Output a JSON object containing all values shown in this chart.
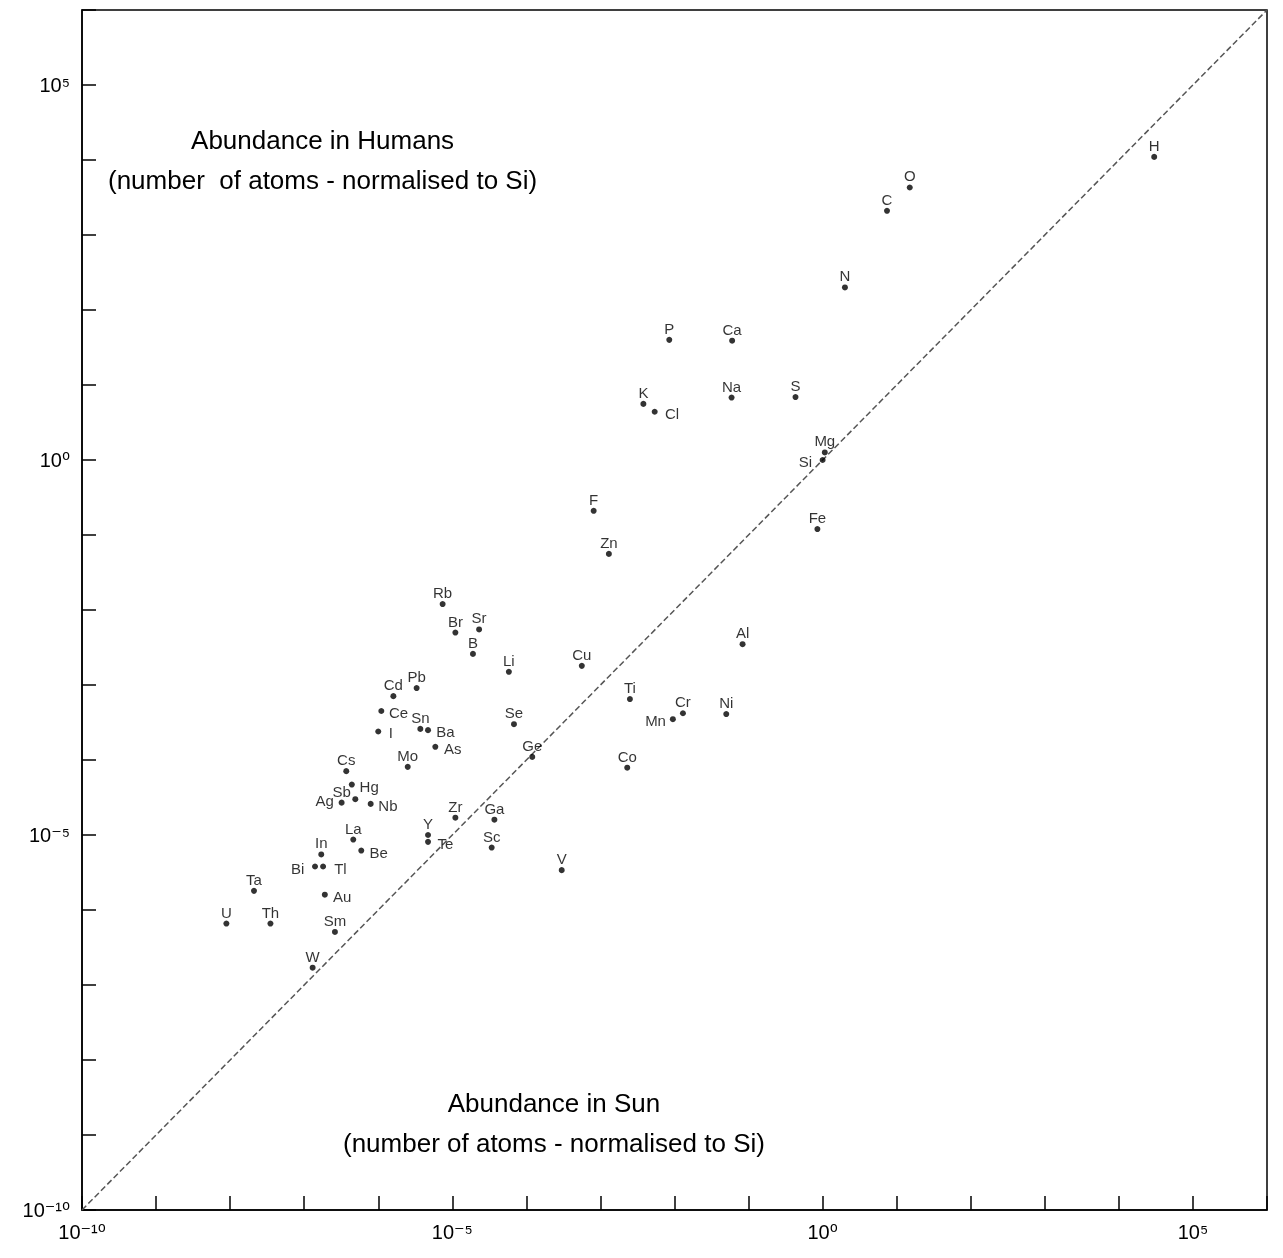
{
  "chart_data": {
    "type": "scatter",
    "xlabel": "Abundance in Sun\n(number of atoms - normalised to Si)",
    "ylabel": "Abundance in Humans\n(number  of atoms - normalised to Si)",
    "log": "xy",
    "grid": false,
    "marker": "circle",
    "xlim": [
      1e-10,
      1000000.0
    ],
    "ylim": [
      1e-10,
      1000000.0
    ],
    "xticks": [
      {
        "value": 1e-10,
        "label": "10⁻¹⁰"
      },
      {
        "value": 1e-09,
        "label": null
      },
      {
        "value": 1e-08,
        "label": null
      },
      {
        "value": 1e-07,
        "label": null
      },
      {
        "value": 1e-06,
        "label": null
      },
      {
        "value": 1e-05,
        "label": "10⁻⁵"
      },
      {
        "value": 0.0001,
        "label": null
      },
      {
        "value": 0.001,
        "label": null
      },
      {
        "value": 0.01,
        "label": null
      },
      {
        "value": 0.1,
        "label": null
      },
      {
        "value": 1,
        "label": "10⁰"
      },
      {
        "value": 10,
        "label": null
      },
      {
        "value": 100,
        "label": null
      },
      {
        "value": 1000,
        "label": null
      },
      {
        "value": 10000.0,
        "label": null
      },
      {
        "value": 100000.0,
        "label": "10⁵"
      },
      {
        "value": 1000000.0,
        "label": null
      }
    ],
    "yticks": [
      {
        "value": 1e-10,
        "label": "10⁻¹⁰"
      },
      {
        "value": 1e-09,
        "label": null
      },
      {
        "value": 1e-08,
        "label": null
      },
      {
        "value": 1e-07,
        "label": null
      },
      {
        "value": 1e-06,
        "label": null
      },
      {
        "value": 1e-05,
        "label": "10⁻⁵"
      },
      {
        "value": 0.0001,
        "label": null
      },
      {
        "value": 0.001,
        "label": null
      },
      {
        "value": 0.01,
        "label": null
      },
      {
        "value": 0.1,
        "label": null
      },
      {
        "value": 1,
        "label": "10⁰"
      },
      {
        "value": 10,
        "label": null
      },
      {
        "value": 100,
        "label": null
      },
      {
        "value": 1000,
        "label": null
      },
      {
        "value": 10000.0,
        "label": null
      },
      {
        "value": 100000.0,
        "label": "10⁵"
      },
      {
        "value": 1000000.0,
        "label": null
      }
    ],
    "series": [
      {
        "color": "#000000",
        "x": [
          30000.0,
          15,
          7.4,
          2.0,
          0.0085,
          0.06,
          0.0038,
          0.0054,
          0.059,
          0.43,
          1.07,
          1,
          0.00081,
          0.85,
          0.0013,
          7.4e-06,
          1.1e-05,
          2.3e-05,
          1.9e-05,
          5.8e-05,
          0.00056,
          0.083,
          0.0025,
          0.013,
          0.05,
          0.0095,
          3.3e-06,
          1.6e-06,
          1.1e-06,
          3.7e-06,
          4.7e-06,
          1e-06,
          6.8e-05,
          0.00012,
          0.0023,
          2.5e-06,
          5.9e-06,
          3.7e-07,
          4.4e-07,
          4.9e-07,
          3.2e-07,
          7.9e-07,
          1.1e-05,
          3.7e-05,
          4.7e-06,
          4.6e-07,
          3.4e-05,
          4.7e-06,
          0.0003,
          1.7e-07,
          5.9e-07,
          1.4e-07,
          1.8e-07,
          1.9e-07,
          2.1e-08,
          8.9e-09,
          3.5e-08,
          2.6e-07,
          1.3e-07
        ],
        "values": [
          11000.0,
          4300.0,
          2100.0,
          200,
          40,
          39,
          5.6,
          4.4,
          6.8,
          6.9,
          1.26,
          1,
          0.21,
          0.12,
          0.056,
          0.012,
          0.005,
          0.0055,
          0.0026,
          0.0015,
          0.0018,
          0.0035,
          0.00065,
          0.00042,
          0.00041,
          0.00035,
          0.00091,
          0.00071,
          0.00045,
          0.00026,
          0.00025,
          0.00024,
          0.0003,
          0.00011,
          7.9e-05,
          8.1e-05,
          0.00015,
          7.1e-05,
          4.7e-05,
          3e-05,
          2.7e-05,
          2.6e-05,
          1.7e-05,
          1.6e-05,
          1e-05,
          8.7e-06,
          6.8e-06,
          8.1e-06,
          3.4e-06,
          5.5e-06,
          6.2e-06,
          3.8e-06,
          3.8e-06,
          1.6e-06,
          1.8e-06,
          6.6e-07,
          6.6e-07,
          5.1e-07,
          1.7e-07
        ]
      },
      {
        "type": "line",
        "color": "#555555",
        "line_style": "dashed",
        "marker": "none",
        "x": [
          1e-10,
          1000000.0
        ],
        "values": [
          1e-10,
          1000000.0
        ]
      }
    ],
    "annotations": [
      {
        "text": "H",
        "x": 30000.0,
        "y": 11000.0
      },
      {
        "text": "O",
        "x": 15,
        "y": 4300.0
      },
      {
        "text": "C",
        "x": 7.4,
        "y": 2100.0
      },
      {
        "text": "N",
        "x": 2.0,
        "y": 200
      },
      {
        "text": "P",
        "x": 0.0085,
        "y": 40
      },
      {
        "text": "Ca",
        "x": 0.06,
        "y": 39
      },
      {
        "text": "K",
        "x": 0.0038,
        "y": 5.6
      },
      {
        "text": "Cl",
        "x": 0.0054,
        "y": 4.4
      },
      {
        "text": "Na",
        "x": 0.059,
        "y": 6.8
      },
      {
        "text": "S",
        "x": 0.43,
        "y": 6.9
      },
      {
        "text": "Mg",
        "x": 1.07,
        "y": 1.26
      },
      {
        "text": "Si",
        "x": 1,
        "y": 1
      },
      {
        "text": "F",
        "x": 0.00081,
        "y": 0.21
      },
      {
        "text": "Fe",
        "x": 0.85,
        "y": 0.12
      },
      {
        "text": "Zn",
        "x": 0.0013,
        "y": 0.056
      },
      {
        "text": "Rb",
        "x": 7.4e-06,
        "y": 0.012
      },
      {
        "text": "Br",
        "x": 1.1e-05,
        "y": 0.005
      },
      {
        "text": "Sr",
        "x": 2.3e-05,
        "y": 0.0055
      },
      {
        "text": "B",
        "x": 1.9e-05,
        "y": 0.0026
      },
      {
        "text": "Li",
        "x": 5.8e-05,
        "y": 0.0015
      },
      {
        "text": "Cu",
        "x": 0.00056,
        "y": 0.0018
      },
      {
        "text": "Al",
        "x": 0.083,
        "y": 0.0035
      },
      {
        "text": "Ti",
        "x": 0.0025,
        "y": 0.00065
      },
      {
        "text": "Cr",
        "x": 0.013,
        "y": 0.00042
      },
      {
        "text": "Ni",
        "x": 0.05,
        "y": 0.00041
      },
      {
        "text": "Mn",
        "x": 0.0095,
        "y": 0.00035
      },
      {
        "text": "Pb",
        "x": 3.3e-06,
        "y": 0.00091
      },
      {
        "text": "Cd",
        "x": 1.6e-06,
        "y": 0.00071
      },
      {
        "text": "Ce",
        "x": 1.1e-06,
        "y": 0.00045
      },
      {
        "text": "Sn",
        "x": 3.7e-06,
        "y": 0.00026
      },
      {
        "text": "Ba",
        "x": 4.7e-06,
        "y": 0.00025
      },
      {
        "text": "I",
        "x": 1e-06,
        "y": 0.00024
      },
      {
        "text": "Se",
        "x": 6.8e-05,
        "y": 0.0003
      },
      {
        "text": "Ge",
        "x": 0.00012,
        "y": 0.00011
      },
      {
        "text": "Co",
        "x": 0.0023,
        "y": 7.9e-05
      },
      {
        "text": "Mo",
        "x": 2.5e-06,
        "y": 8.1e-05
      },
      {
        "text": "As",
        "x": 5.9e-06,
        "y": 0.00015
      },
      {
        "text": "Cs",
        "x": 3.7e-07,
        "y": 7.1e-05
      },
      {
        "text": "Hg",
        "x": 4.4e-07,
        "y": 4.7e-05
      },
      {
        "text": "Ag",
        "x": 4.9e-07,
        "y": 3e-05
      },
      {
        "text": "Sb",
        "x": 3.2e-07,
        "y": 2.7e-05
      },
      {
        "text": "Nb",
        "x": 7.9e-07,
        "y": 2.6e-05
      },
      {
        "text": "Zr",
        "x": 1.1e-05,
        "y": 1.7e-05
      },
      {
        "text": "Ga",
        "x": 3.7e-05,
        "y": 1.6e-05
      },
      {
        "text": "Y",
        "x": 4.7e-06,
        "y": 1e-05
      },
      {
        "text": "La",
        "x": 4.6e-07,
        "y": 8.7e-06
      },
      {
        "text": "Sc",
        "x": 3.4e-05,
        "y": 6.8e-06
      },
      {
        "text": "Te",
        "x": 4.7e-06,
        "y": 8.1e-06
      },
      {
        "text": "V",
        "x": 0.0003,
        "y": 3.4e-06
      },
      {
        "text": "In",
        "x": 1.7e-07,
        "y": 5.5e-06
      },
      {
        "text": "Be",
        "x": 5.9e-07,
        "y": 6.2e-06
      },
      {
        "text": "Bi",
        "x": 1.4e-07,
        "y": 3.8e-06
      },
      {
        "text": "Tl",
        "x": 1.8e-07,
        "y": 3.8e-06
      },
      {
        "text": "Au",
        "x": 1.9e-07,
        "y": 1.6e-06
      },
      {
        "text": "Ta",
        "x": 2.1e-08,
        "y": 1.8e-06
      },
      {
        "text": "U",
        "x": 8.9e-09,
        "y": 6.6e-07
      },
      {
        "text": "Th",
        "x": 3.5e-08,
        "y": 6.6e-07
      },
      {
        "text": "Sm",
        "x": 2.6e-07,
        "y": 5.1e-07
      },
      {
        "text": "W",
        "x": 1.3e-07,
        "y": 1.7e-07
      }
    ]
  }
}
